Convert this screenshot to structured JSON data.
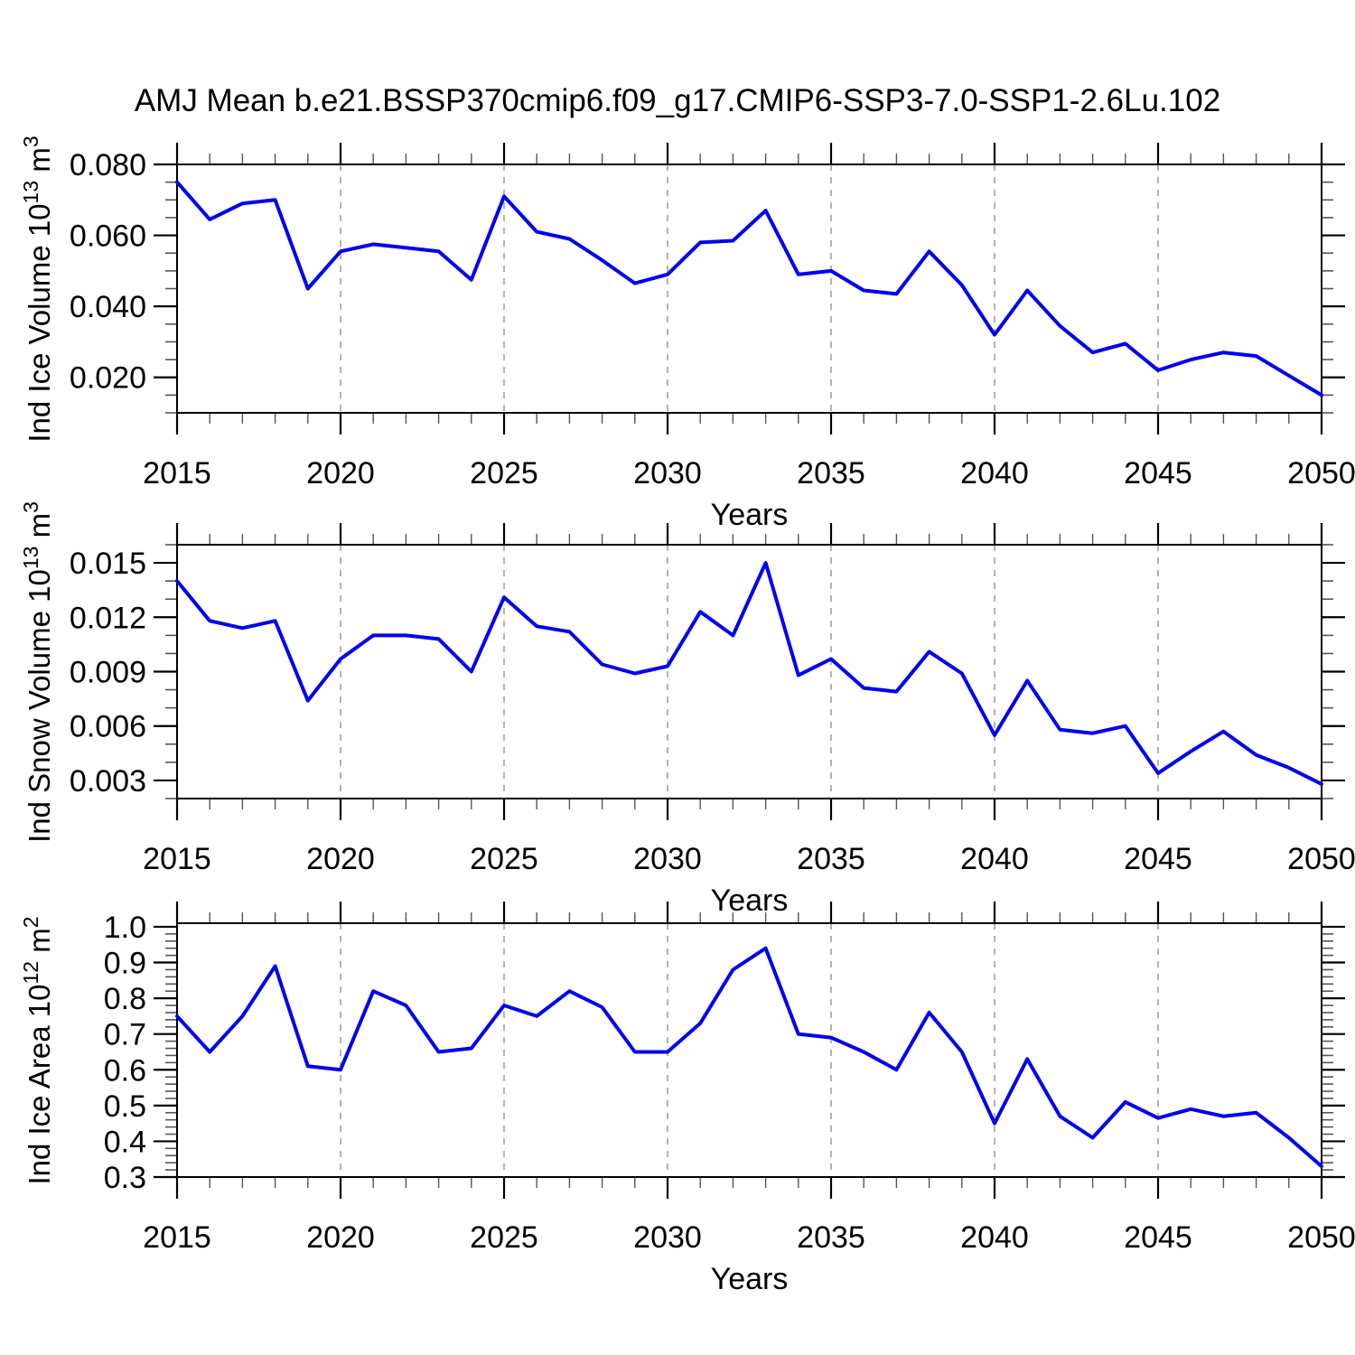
{
  "title": "AMJ Mean b.e21.BSSP370cmip6.f09_g17.CMIP6-SSP3-7.0-SSP1-2.6Lu.102",
  "colors": {
    "line": "#0000ee",
    "axis": "#000000",
    "minor_tick": "#555555",
    "gridline": "#b3b3b3",
    "text": "#000000",
    "background": "#ffffff"
  },
  "x_axis": {
    "label": "Years",
    "range": [
      2015,
      2050
    ],
    "major_ticks": [
      2015,
      2020,
      2025,
      2030,
      2035,
      2040,
      2045,
      2050
    ],
    "tick_labels": [
      "2015",
      "2020",
      "2025",
      "2030",
      "2035",
      "2040",
      "2045",
      "2050"
    ],
    "minor_step": 1,
    "gridlines": [
      2020,
      2025,
      2030,
      2035,
      2040,
      2045
    ]
  },
  "chart_data": [
    {
      "type": "line",
      "name": "ind-ice-volume",
      "ylabel": {
        "plain": "Ind Ice Volume 10^13 m^3",
        "prefix": "Ind Ice Volume 10",
        "sup1": "13",
        "mid": " m",
        "sup2": "3"
      },
      "xlabel": "Years",
      "ylim": [
        0.01,
        0.08
      ],
      "ytick_values": [
        0.02,
        0.04,
        0.06,
        0.08
      ],
      "ytick_labels": [
        "0.020",
        "0.040",
        "0.060",
        "0.080"
      ],
      "minor_step": 0.005,
      "x": [
        2015,
        2016,
        2017,
        2018,
        2019,
        2020,
        2021,
        2022,
        2023,
        2024,
        2025,
        2026,
        2027,
        2028,
        2029,
        2030,
        2031,
        2032,
        2033,
        2034,
        2035,
        2036,
        2037,
        2038,
        2039,
        2040,
        2041,
        2042,
        2043,
        2044,
        2045,
        2046,
        2047,
        2048,
        2049,
        2050
      ],
      "values": [
        0.075,
        0.0645,
        0.069,
        0.07,
        0.045,
        0.0555,
        0.0575,
        0.0565,
        0.0555,
        0.0475,
        0.071,
        0.061,
        0.059,
        0.053,
        0.0465,
        0.049,
        0.058,
        0.0585,
        0.067,
        0.049,
        0.05,
        0.0445,
        0.0435,
        0.0555,
        0.046,
        0.032,
        0.0445,
        0.0345,
        0.027,
        0.0295,
        0.022,
        0.025,
        0.027,
        0.026,
        0.0205,
        0.015
      ]
    },
    {
      "type": "line",
      "name": "ind-snow-volume",
      "ylabel": {
        "plain": "Ind Snow Volume 10^13 m^3",
        "prefix": "Ind Snow Volume 10",
        "sup1": "13",
        "mid": " m",
        "sup2": "3"
      },
      "xlabel": "Years",
      "ylim": [
        0.002,
        0.016
      ],
      "ytick_values": [
        0.003,
        0.006,
        0.009,
        0.012,
        0.015
      ],
      "ytick_labels": [
        "0.003",
        "0.006",
        "0.009",
        "0.012",
        "0.015"
      ],
      "minor_step": 0.001,
      "x": [
        2015,
        2016,
        2017,
        2018,
        2019,
        2020,
        2021,
        2022,
        2023,
        2024,
        2025,
        2026,
        2027,
        2028,
        2029,
        2030,
        2031,
        2032,
        2033,
        2034,
        2035,
        2036,
        2037,
        2038,
        2039,
        2040,
        2041,
        2042,
        2043,
        2044,
        2045,
        2046,
        2047,
        2048,
        2049,
        2050
      ],
      "values": [
        0.014,
        0.0118,
        0.0114,
        0.0118,
        0.0074,
        0.0097,
        0.011,
        0.011,
        0.0108,
        0.009,
        0.0131,
        0.0115,
        0.0112,
        0.0094,
        0.0089,
        0.0093,
        0.0123,
        0.011,
        0.015,
        0.0088,
        0.0097,
        0.0081,
        0.0079,
        0.0101,
        0.0089,
        0.0055,
        0.0085,
        0.0058,
        0.0056,
        0.006,
        0.0034,
        0.0046,
        0.0057,
        0.0044,
        0.0037,
        0.0028
      ]
    },
    {
      "type": "line",
      "name": "ind-ice-area",
      "ylabel": {
        "plain": "Ind Ice Area 10^12 m^2",
        "prefix": "Ind Ice Area 10",
        "sup1": "12",
        "mid": " m",
        "sup2": "2"
      },
      "xlabel": "Years",
      "ylim": [
        0.3,
        1.01
      ],
      "ytick_values": [
        0.3,
        0.4,
        0.5,
        0.6,
        0.7,
        0.8,
        0.9,
        1.0
      ],
      "ytick_labels": [
        "0.3",
        "0.4",
        "0.5",
        "0.6",
        "0.7",
        "0.8",
        "0.9",
        "1.0"
      ],
      "minor_step": 0.02,
      "x": [
        2015,
        2016,
        2017,
        2018,
        2019,
        2020,
        2021,
        2022,
        2023,
        2024,
        2025,
        2026,
        2027,
        2028,
        2029,
        2030,
        2031,
        2032,
        2033,
        2034,
        2035,
        2036,
        2037,
        2038,
        2039,
        2040,
        2041,
        2042,
        2043,
        2044,
        2045,
        2046,
        2047,
        2048,
        2049,
        2050
      ],
      "values": [
        0.75,
        0.65,
        0.75,
        0.89,
        0.61,
        0.6,
        0.82,
        0.78,
        0.65,
        0.66,
        0.78,
        0.75,
        0.82,
        0.775,
        0.65,
        0.65,
        0.73,
        0.88,
        0.94,
        0.7,
        0.69,
        0.65,
        0.6,
        0.76,
        0.65,
        0.45,
        0.63,
        0.47,
        0.41,
        0.51,
        0.465,
        0.49,
        0.47,
        0.48,
        0.41,
        0.33
      ]
    }
  ]
}
